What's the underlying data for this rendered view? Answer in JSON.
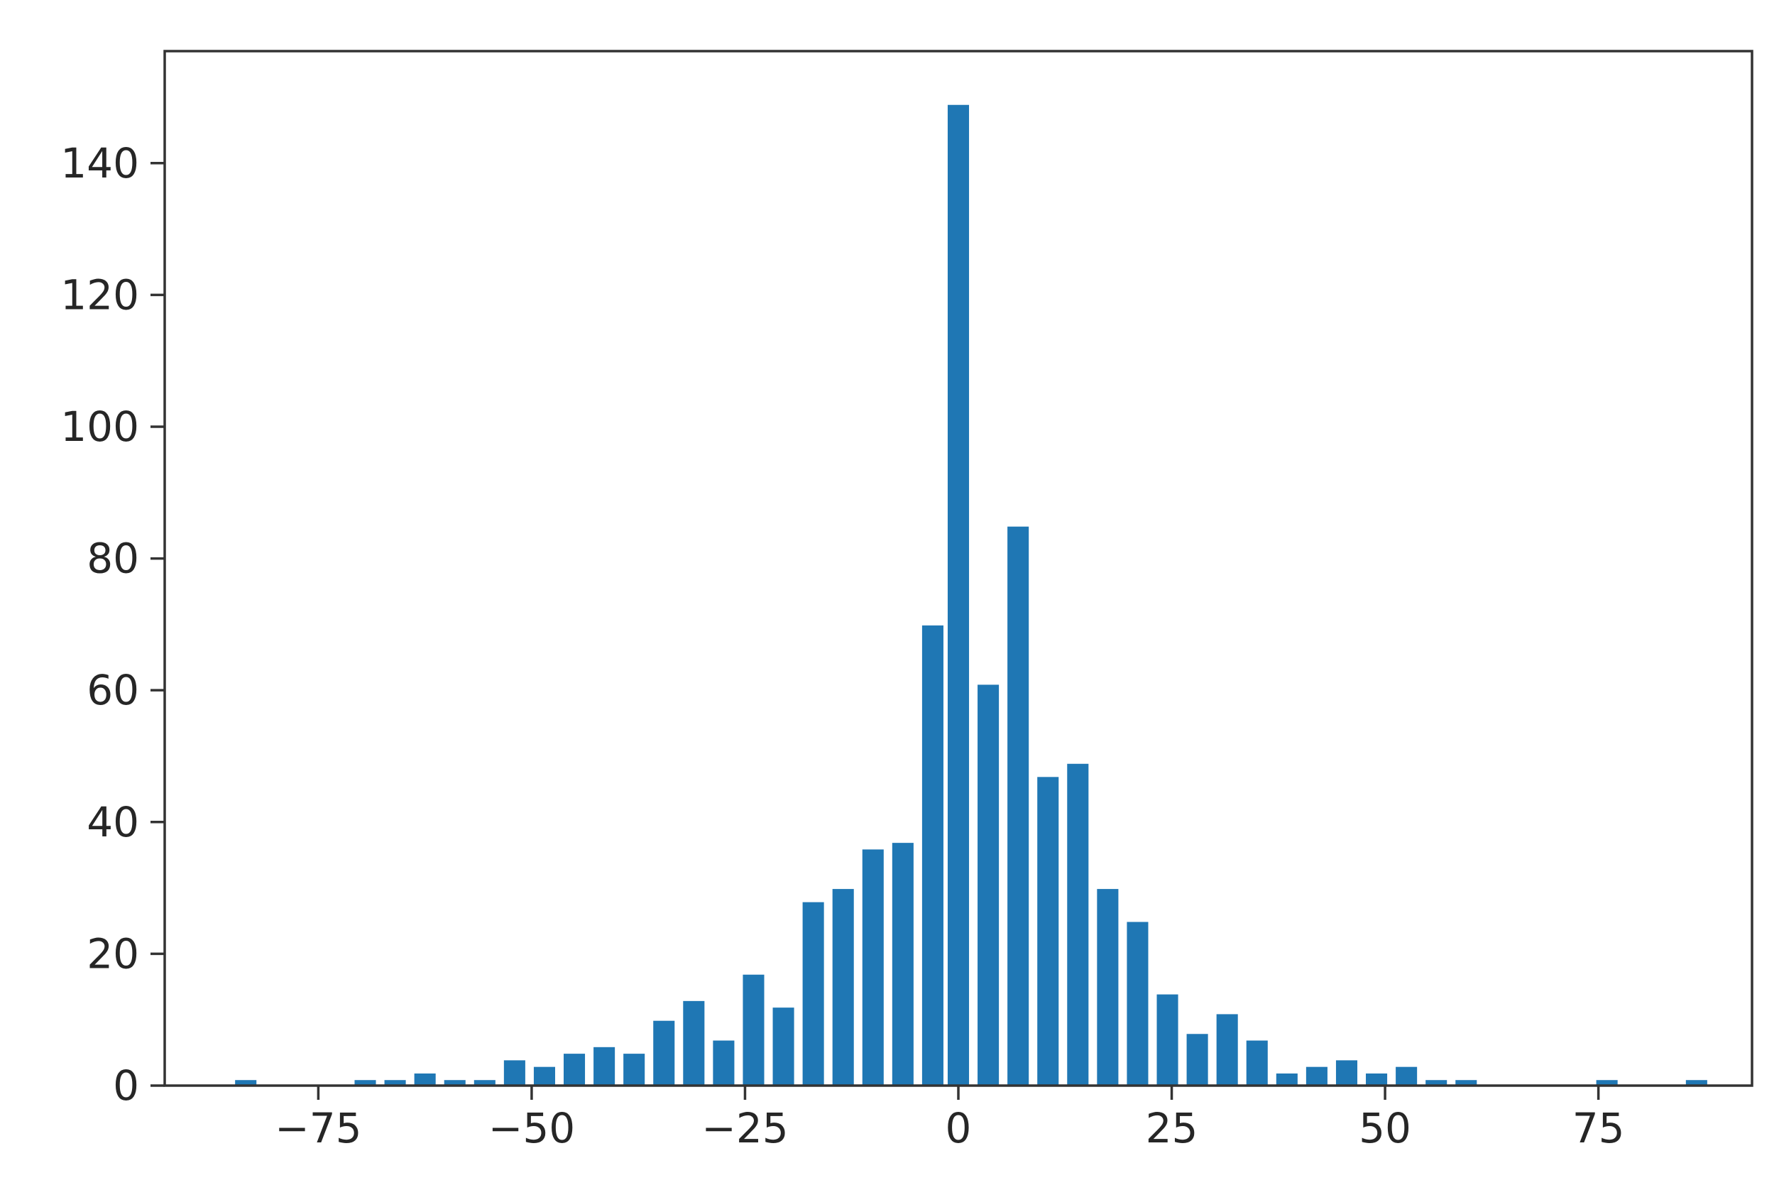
{
  "chart_data": {
    "type": "bar",
    "title": "",
    "xlabel": "",
    "ylabel": "",
    "xlim": [
      -93,
      93
    ],
    "ylim": [
      0,
      157
    ],
    "x_ticks": [
      -75,
      -50,
      -25,
      0,
      25,
      50,
      75
    ],
    "x_tick_labels": [
      "−75",
      "−50",
      "−25",
      "0",
      "25",
      "50",
      "75"
    ],
    "y_ticks": [
      0,
      20,
      40,
      60,
      80,
      100,
      120,
      140
    ],
    "y_tick_labels": [
      "0",
      "20",
      "40",
      "60",
      "80",
      "100",
      "120",
      "140"
    ],
    "bar_color": "#1f77b4",
    "bar_edge_color": "#ffffff",
    "bar_width": 2.75,
    "grid": false,
    "legend": "none",
    "x": [
      -83.5,
      -69.5,
      -66,
      -62.5,
      -59,
      -55.5,
      -52,
      -48.5,
      -45,
      -41.5,
      -38,
      -34.5,
      -31,
      -27.5,
      -24,
      -20.5,
      -17,
      -13.5,
      -10,
      -6.5,
      -3,
      0,
      3.5,
      7,
      10.5,
      14,
      17.5,
      21,
      24.5,
      28,
      31.5,
      35,
      38.5,
      42,
      45.5,
      49,
      52.5,
      56,
      59.5,
      76,
      86.5
    ],
    "values": [
      1,
      1,
      1,
      2,
      1,
      1,
      4,
      3,
      5,
      6,
      5,
      10,
      13,
      7,
      17,
      12,
      28,
      30,
      36,
      37,
      70,
      149,
      61,
      85,
      47,
      49,
      30,
      25,
      14,
      8,
      11,
      7,
      2,
      3,
      4,
      2,
      3,
      1,
      1,
      1,
      1
    ]
  }
}
